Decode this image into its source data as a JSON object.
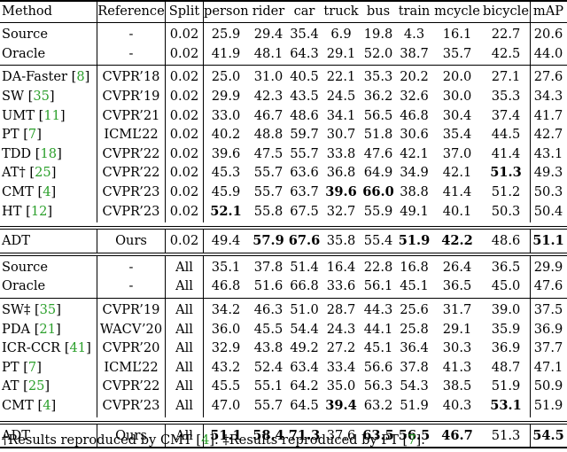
{
  "columns": [
    "Method",
    "Reference",
    "Split",
    "person",
    "rider",
    "car",
    "truck",
    "bus",
    "train",
    "mcycle",
    "bicycle",
    "mAP"
  ],
  "groups": [
    [
      {
        "method": "Source",
        "cite": "",
        "ref": "-",
        "split": "0.02",
        "vals": [
          "25.9",
          "29.4",
          "35.4",
          "6.9",
          "19.8",
          "4.3",
          "16.1",
          "22.7",
          "20.6"
        ],
        "bold": []
      },
      {
        "method": "Oracle",
        "cite": "",
        "ref": "-",
        "split": "0.02",
        "vals": [
          "41.9",
          "48.1",
          "64.3",
          "29.1",
          "52.0",
          "38.7",
          "35.7",
          "42.5",
          "44.0"
        ],
        "bold": []
      }
    ],
    [
      {
        "method": "DA-Faster ",
        "cite": "8",
        "ref": "CVPR’18",
        "split": "0.02",
        "vals": [
          "25.0",
          "31.0",
          "40.5",
          "22.1",
          "35.3",
          "20.2",
          "20.0",
          "27.1",
          "27.6"
        ],
        "bold": []
      },
      {
        "method": "SW ",
        "cite": "35",
        "ref": "CVPR’19",
        "split": "0.02",
        "vals": [
          "29.9",
          "42.3",
          "43.5",
          "24.5",
          "36.2",
          "32.6",
          "30.0",
          "35.3",
          "34.3"
        ],
        "bold": []
      },
      {
        "method": "UMT ",
        "cite": "11",
        "ref": "CVPR’21",
        "split": "0.02",
        "vals": [
          "33.0",
          "46.7",
          "48.6",
          "34.1",
          "56.5",
          "46.8",
          "30.4",
          "37.4",
          "41.7"
        ],
        "bold": []
      },
      {
        "method": "PT ",
        "cite": "7",
        "ref": "ICML’22",
        "split": "0.02",
        "vals": [
          "40.2",
          "48.8",
          "59.7",
          "30.7",
          "51.8",
          "30.6",
          "35.4",
          "44.5",
          "42.7"
        ],
        "bold": []
      },
      {
        "method": "TDD ",
        "cite": "18",
        "ref": "CVPR’22",
        "split": "0.02",
        "vals": [
          "39.6",
          "47.5",
          "55.7",
          "33.8",
          "47.6",
          "42.1",
          "37.0",
          "41.4",
          "43.1"
        ],
        "bold": []
      },
      {
        "method": "AT† ",
        "cite": "25",
        "ref": "CVPR’22",
        "split": "0.02",
        "vals": [
          "45.3",
          "55.7",
          "63.6",
          "36.8",
          "64.9",
          "34.9",
          "42.1",
          "51.3",
          "49.3"
        ],
        "bold": [
          7
        ]
      },
      {
        "method": "CMT ",
        "cite": "4",
        "ref": "CVPR’23",
        "split": "0.02",
        "vals": [
          "45.9",
          "55.7",
          "63.7",
          "39.6",
          "66.0",
          "38.8",
          "41.4",
          "51.2",
          "50.3"
        ],
        "bold": [
          3,
          4
        ]
      },
      {
        "method": "HT ",
        "cite": "12",
        "ref": "CVPR’23",
        "split": "0.02",
        "vals": [
          "52.1",
          "55.8",
          "67.5",
          "32.7",
          "55.9",
          "49.1",
          "40.1",
          "50.3",
          "50.4"
        ],
        "bold": [
          0
        ]
      }
    ],
    [
      {
        "method": "ADT",
        "cite": "",
        "ref": "Ours",
        "split": "0.02",
        "vals": [
          "49.4",
          "57.9",
          "67.6",
          "35.8",
          "55.4",
          "51.9",
          "42.2",
          "48.6",
          "51.1"
        ],
        "bold": [
          1,
          2,
          5,
          6,
          8
        ]
      }
    ],
    [
      {
        "method": "Source",
        "cite": "",
        "ref": "-",
        "split": "All",
        "vals": [
          "35.1",
          "37.8",
          "51.4",
          "16.4",
          "22.8",
          "16.8",
          "26.4",
          "36.5",
          "29.9"
        ],
        "bold": []
      },
      {
        "method": "Oracle",
        "cite": "",
        "ref": "-",
        "split": "All",
        "vals": [
          "46.8",
          "51.6",
          "66.8",
          "33.6",
          "56.1",
          "45.1",
          "36.5",
          "45.0",
          "47.6"
        ],
        "bold": []
      }
    ],
    [
      {
        "method": "SW‡ ",
        "cite": "35",
        "ref": "CVPR’19",
        "split": "All",
        "vals": [
          "34.2",
          "46.3",
          "51.0",
          "28.7",
          "44.3",
          "25.6",
          "31.7",
          "39.0",
          "37.5"
        ],
        "bold": []
      },
      {
        "method": "PDA ",
        "cite": "21",
        "ref": "WACV’20",
        "split": "All",
        "vals": [
          "36.0",
          "45.5",
          "54.4",
          "24.3",
          "44.1",
          "25.8",
          "29.1",
          "35.9",
          "36.9"
        ],
        "bold": []
      },
      {
        "method": "ICR-CCR ",
        "cite": "41",
        "ref": "CVPR’20",
        "split": "All",
        "vals": [
          "32.9",
          "43.8",
          "49.2",
          "27.2",
          "45.1",
          "36.4",
          "30.3",
          "36.9",
          "37.7"
        ],
        "bold": []
      },
      {
        "method": "PT ",
        "cite": "7",
        "ref": "ICML’22",
        "split": "All",
        "vals": [
          "43.2",
          "52.4",
          "63.4",
          "33.4",
          "56.6",
          "37.8",
          "41.3",
          "48.7",
          "47.1"
        ],
        "bold": []
      },
      {
        "method": "AT ",
        "cite": "25",
        "ref": "CVPR’22",
        "split": "All",
        "vals": [
          "45.5",
          "55.1",
          "64.2",
          "35.0",
          "56.3",
          "54.3",
          "38.5",
          "51.9",
          "50.9"
        ],
        "bold": []
      },
      {
        "method": "CMT ",
        "cite": "4",
        "ref": "CVPR’23",
        "split": "All",
        "vals": [
          "47.0",
          "55.7",
          "64.5",
          "39.4",
          "63.2",
          "51.9",
          "40.3",
          "53.1",
          "51.9"
        ],
        "bold": [
          3,
          7
        ]
      }
    ],
    [
      {
        "method": "ADT",
        "cite": "",
        "ref": "Ours",
        "split": "All",
        "vals": [
          "51.1",
          "58.4",
          "71.3",
          "37.6",
          "63.5",
          "56.5",
          "46.7",
          "51.3",
          "54.5"
        ],
        "bold": [
          0,
          1,
          2,
          4,
          5,
          6,
          8
        ]
      }
    ]
  ],
  "footnote": [
    {
      "text": "†Results reproduced by CMT ["
    },
    {
      "text": "4",
      "cite": true
    },
    {
      "text": "]. ‡Results reproduced by PT ["
    },
    {
      "text": "7",
      "cite": true
    },
    {
      "text": "]."
    }
  ]
}
